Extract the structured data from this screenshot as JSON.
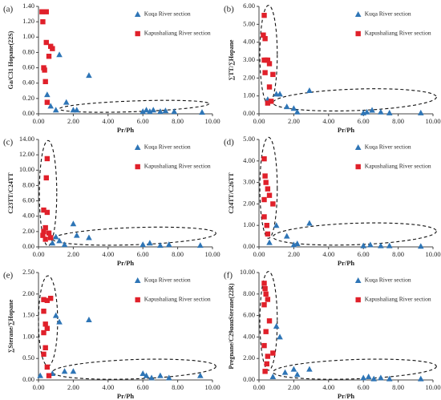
{
  "chart_data": [
    {
      "type": "scatter",
      "label": "(a)",
      "xlabel": "Pr/Ph",
      "ylabel": "Ga/C31 Hopane(22S)",
      "legend": "upper right",
      "xlim": [
        0,
        10
      ],
      "ylim": [
        0,
        1.4
      ],
      "xticks": [
        {
          "value": 0,
          "label": "0.00"
        },
        {
          "value": 2,
          "label": "2.00"
        },
        {
          "value": 4,
          "label": "4.00"
        },
        {
          "value": 6,
          "label": "6.00"
        },
        {
          "value": 8,
          "label": "8.00"
        },
        {
          "value": 10,
          "label": "10.00"
        }
      ],
      "yticks": [
        {
          "value": 0,
          "label": "0.00"
        },
        {
          "value": 0.2,
          "label": "0.20"
        },
        {
          "value": 0.4,
          "label": "0.40"
        },
        {
          "value": 0.6,
          "label": "0.60"
        },
        {
          "value": 0.8,
          "label": "0.80"
        },
        {
          "value": 1.0,
          "label": "1.00"
        },
        {
          "value": 1.2,
          "label": "1.20"
        },
        {
          "value": 1.4,
          "label": "1.40"
        }
      ],
      "series": [
        {
          "name": "Kuqa River section",
          "color": "#2e75b6",
          "marker": "triangle",
          "x": [
            0.5,
            0.7,
            1.0,
            1.2,
            1.6,
            2.0,
            2.2,
            2.9,
            6.0,
            6.2,
            6.4,
            6.6,
            7.0,
            7.3,
            7.8,
            9.4
          ],
          "values": [
            0.25,
            0.1,
            0.05,
            0.77,
            0.15,
            0.05,
            0.05,
            0.5,
            0.03,
            0.05,
            0.03,
            0.05,
            0.03,
            0.04,
            0.03,
            0.02
          ]
        },
        {
          "name": "Kapushaliang River section",
          "color": "#e0202a",
          "marker": "square",
          "x": [
            0.2,
            0.25,
            0.3,
            0.35,
            0.4,
            0.45,
            0.5,
            0.6,
            0.7,
            0.8,
            0.45
          ],
          "values": [
            1.33,
            1.2,
            0.6,
            0.57,
            0.42,
            0.93,
            0.15,
            0.75,
            0.88,
            0.85,
            1.33
          ]
        }
      ]
    },
    {
      "type": "scatter",
      "label": "(b)",
      "xlabel": "Pr/Ph",
      "ylabel": "∑TT/∑Hopane",
      "legend": "upper right",
      "xlim": [
        0,
        10
      ],
      "ylim": [
        0,
        6
      ],
      "xticks": [
        {
          "value": 0,
          "label": "0.00"
        },
        {
          "value": 2,
          "label": "2.00"
        },
        {
          "value": 4,
          "label": "4.00"
        },
        {
          "value": 6,
          "label": "6.00"
        },
        {
          "value": 8,
          "label": "8.00"
        },
        {
          "value": 10,
          "label": "10.00"
        }
      ],
      "yticks": [
        {
          "value": 0,
          "label": "0.00"
        },
        {
          "value": 1,
          "label": "1.00"
        },
        {
          "value": 2,
          "label": "2.00"
        },
        {
          "value": 3,
          "label": "3.00"
        },
        {
          "value": 4,
          "label": "4.00"
        },
        {
          "value": 5,
          "label": "5.00"
        },
        {
          "value": 6,
          "label": "6.00"
        }
      ],
      "series": [
        {
          "name": "Kuqa River section",
          "color": "#2e75b6",
          "marker": "triangle",
          "x": [
            1.0,
            1.2,
            1.6,
            2.0,
            2.2,
            2.9,
            0.5,
            6.0,
            6.2,
            6.5,
            7.0,
            7.5,
            9.3
          ],
          "values": [
            1.1,
            1.1,
            0.4,
            0.3,
            0.1,
            1.3,
            0.8,
            0.05,
            0.1,
            0.2,
            0.1,
            0.05,
            0.05
          ]
        },
        {
          "name": "Kapushaliang River section",
          "color": "#e0202a",
          "marker": "square",
          "x": [
            0.3,
            0.25,
            0.35,
            0.4,
            0.3,
            0.5,
            0.6,
            0.35,
            0.8,
            0.6,
            0.7,
            0.5
          ],
          "values": [
            5.5,
            4.4,
            4.2,
            3.0,
            3.0,
            3.0,
            2.8,
            2.3,
            2.2,
            1.5,
            0.7,
            0.6
          ]
        }
      ]
    },
    {
      "type": "scatter",
      "label": "(c)",
      "xlabel": "Pr/Ph",
      "ylabel": "C23TT/C24TT",
      "legend": "upper right",
      "xlim": [
        0,
        10
      ],
      "ylim": [
        0,
        14
      ],
      "xticks": [
        {
          "value": 0,
          "label": "0.00"
        },
        {
          "value": 2,
          "label": "2.00"
        },
        {
          "value": 4,
          "label": "4.00"
        },
        {
          "value": 6,
          "label": "6.00"
        },
        {
          "value": 8,
          "label": "8.00"
        },
        {
          "value": 10,
          "label": "10.00"
        }
      ],
      "yticks": [
        {
          "value": 0,
          "label": "0.00"
        },
        {
          "value": 2,
          "label": "2.00"
        },
        {
          "value": 4,
          "label": "4.00"
        },
        {
          "value": 6,
          "label": "6.00"
        },
        {
          "value": 8,
          "label": "8.00"
        },
        {
          "value": 10,
          "label": "10.00"
        },
        {
          "value": 12,
          "label": "12.00"
        },
        {
          "value": 14,
          "label": "14.00"
        }
      ],
      "series": [
        {
          "name": "Kuqa River section",
          "color": "#2e75b6",
          "marker": "triangle",
          "x": [
            0.8,
            1.0,
            1.2,
            1.5,
            2.0,
            2.2,
            2.9,
            6.0,
            6.4,
            7.0,
            7.5,
            9.3
          ],
          "values": [
            0.5,
            1.3,
            0.8,
            0.3,
            3.0,
            1.5,
            1.2,
            0.3,
            0.5,
            0.2,
            0.3,
            0.2
          ]
        },
        {
          "name": "Kapushaliang River section",
          "color": "#e0202a",
          "marker": "square",
          "x": [
            0.5,
            0.45,
            0.3,
            0.5,
            0.4,
            0.3,
            0.25,
            0.6,
            0.7,
            0.4
          ],
          "values": [
            11.5,
            9.0,
            4.8,
            4.5,
            2.5,
            2.0,
            1.5,
            1.8,
            1.2,
            1.0
          ]
        }
      ]
    },
    {
      "type": "scatter",
      "label": "(d)",
      "xlabel": "Pr/Ph",
      "ylabel": "C24TT/C26TT",
      "legend": "upper right",
      "xlim": [
        0,
        10
      ],
      "ylim": [
        0,
        5
      ],
      "xticks": [
        {
          "value": 0,
          "label": "0.00"
        },
        {
          "value": 2,
          "label": "2.00"
        },
        {
          "value": 4,
          "label": "4.00"
        },
        {
          "value": 6,
          "label": "6.00"
        },
        {
          "value": 8,
          "label": "8.00"
        },
        {
          "value": 10,
          "label": "10.00"
        }
      ],
      "yticks": [
        {
          "value": 0,
          "label": "0.00"
        },
        {
          "value": 1,
          "label": "1.00"
        },
        {
          "value": 2,
          "label": "2.00"
        },
        {
          "value": 3,
          "label": "3.00"
        },
        {
          "value": 4,
          "label": "4.00"
        },
        {
          "value": 5,
          "label": "5.00"
        }
      ],
      "series": [
        {
          "name": "Kuqa River section",
          "color": "#2e75b6",
          "marker": "triangle",
          "x": [
            0.6,
            1.0,
            1.6,
            2.0,
            2.2,
            2.9,
            6.0,
            6.4,
            7.0,
            7.5,
            9.3
          ],
          "values": [
            0.2,
            1.0,
            0.5,
            0.1,
            0.15,
            1.1,
            0.05,
            0.1,
            0.05,
            0.05,
            0.03
          ]
        },
        {
          "name": "Kapushaliang River section",
          "color": "#e0202a",
          "marker": "square",
          "x": [
            0.3,
            0.35,
            0.4,
            0.5,
            0.3,
            0.6,
            0.8,
            0.3,
            0.45,
            0.5
          ],
          "values": [
            4.1,
            3.3,
            3.0,
            2.7,
            2.2,
            2.4,
            2.0,
            1.4,
            1.0,
            0.6
          ]
        }
      ]
    },
    {
      "type": "scatter",
      "label": "(e)",
      "xlabel": "Pr/Ph",
      "ylabel": "∑Sterane/∑Hopane",
      "legend": "upper right",
      "xlim": [
        0,
        10
      ],
      "ylim": [
        0,
        2.5
      ],
      "xticks": [
        {
          "value": 0,
          "label": "0.00"
        },
        {
          "value": 2,
          "label": "2.00"
        },
        {
          "value": 4,
          "label": "4.00"
        },
        {
          "value": 6,
          "label": "6.00"
        },
        {
          "value": 8,
          "label": "8.00"
        },
        {
          "value": 10,
          "label": "10.00"
        }
      ],
      "yticks": [
        {
          "value": 0,
          "label": "0.00"
        },
        {
          "value": 0.5,
          "label": "0.50"
        },
        {
          "value": 1.0,
          "label": "1.00"
        },
        {
          "value": 1.5,
          "label": "1.50"
        },
        {
          "value": 2.0,
          "label": "2.00"
        },
        {
          "value": 2.5,
          "label": "2.50"
        }
      ],
      "series": [
        {
          "name": "Kuqa River section",
          "color": "#2e75b6",
          "marker": "triangle",
          "x": [
            0.1,
            1.0,
            1.2,
            0.8,
            1.5,
            2.0,
            2.9,
            6.0,
            6.2,
            6.5,
            7.0,
            7.5,
            9.3
          ],
          "values": [
            0.1,
            1.5,
            1.35,
            0.15,
            0.2,
            0.2,
            1.4,
            0.15,
            0.1,
            0.05,
            0.1,
            0.05,
            0.1
          ]
        },
        {
          "name": "Kapushaliang River section",
          "color": "#e0202a",
          "marker": "square",
          "x": [
            0.3,
            0.5,
            0.7,
            0.3,
            0.4,
            0.5,
            0.3,
            0.4,
            0.3,
            0.5,
            0.6
          ],
          "values": [
            1.87,
            1.85,
            1.9,
            1.6,
            1.3,
            1.2,
            1.1,
            0.75,
            0.6,
            0.3,
            0.1
          ]
        }
      ]
    },
    {
      "type": "scatter",
      "label": "(f)",
      "xlabel": "Pr/Ph",
      "ylabel": "Pregnane/C29αααSterane(22R)",
      "legend": "upper right",
      "xlim": [
        0,
        10
      ],
      "ylim": [
        0,
        10
      ],
      "xticks": [
        {
          "value": 0,
          "label": "0.00"
        },
        {
          "value": 2,
          "label": "2.00"
        },
        {
          "value": 4,
          "label": "4.00"
        },
        {
          "value": 6,
          "label": "6.00"
        },
        {
          "value": 8,
          "label": "8.00"
        },
        {
          "value": 10,
          "label": "10.00"
        }
      ],
      "yticks": [
        {
          "value": 0,
          "label": "0.00"
        },
        {
          "value": 2,
          "label": "2.00"
        },
        {
          "value": 4,
          "label": "4.00"
        },
        {
          "value": 6,
          "label": "6.00"
        },
        {
          "value": 8,
          "label": "8.00"
        },
        {
          "value": 10,
          "label": "10.00"
        }
      ],
      "series": [
        {
          "name": "Kuqa River section",
          "color": "#2e75b6",
          "marker": "triangle",
          "x": [
            1.0,
            1.2,
            0.8,
            1.5,
            2.0,
            2.2,
            2.9,
            6.0,
            6.3,
            6.6,
            7.0,
            7.5,
            9.3
          ],
          "values": [
            5.0,
            4.0,
            0.3,
            0.7,
            1.0,
            0.5,
            1.0,
            0.2,
            0.3,
            0.1,
            0.2,
            0.1,
            0.1
          ]
        },
        {
          "name": "Kapushaliang River section",
          "color": "#e0202a",
          "marker": "square",
          "x": [
            0.3,
            0.35,
            0.4,
            0.3,
            0.5,
            0.6,
            0.4,
            0.3,
            0.5,
            0.45,
            0.35,
            0.8
          ],
          "values": [
            9.0,
            8.5,
            8.0,
            7.0,
            7.5,
            5.5,
            4.5,
            3.2,
            2.2,
            1.5,
            0.8,
            2.5
          ]
        }
      ]
    }
  ]
}
